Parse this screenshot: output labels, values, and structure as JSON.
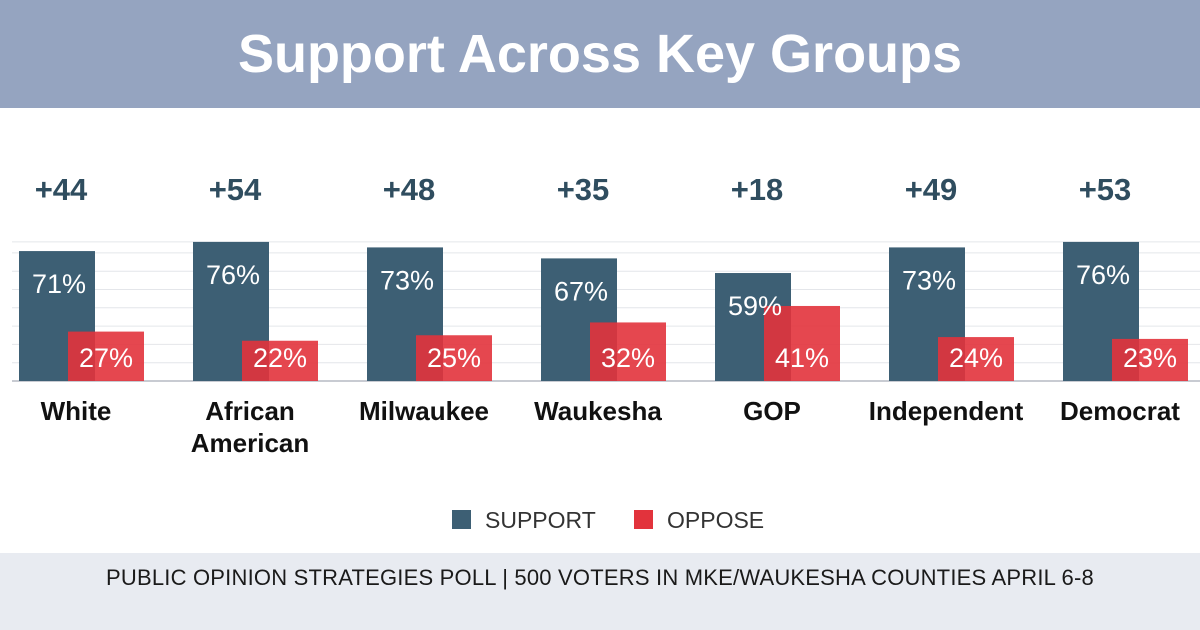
{
  "header": {
    "title": "Support Across Key Groups"
  },
  "footer": {
    "text": "PUBLIC OPINION STRATEGIES POLL  |  500 VOTERS IN MKE/WAUKESHA COUNTIES APRIL 6-8"
  },
  "colors": {
    "support": "#3d5f74",
    "oppose": "#e2333c",
    "header_bg": "#95a4c0",
    "footer_bg": "#e8ebf1",
    "diff_text": "#2f4d5f"
  },
  "chart_data": {
    "type": "bar",
    "title": "Support Across Key Groups",
    "categories": [
      [
        "White"
      ],
      [
        "African",
        "American"
      ],
      [
        "Milwaukee"
      ],
      [
        "Waukesha"
      ],
      [
        "GOP"
      ],
      [
        "Independent"
      ],
      [
        "Democrat"
      ]
    ],
    "series": [
      {
        "name": "SUPPORT",
        "values": [
          71,
          76,
          73,
          67,
          59,
          73,
          76
        ],
        "labels": [
          "71%",
          "76%",
          "73%",
          "67%",
          "59%",
          "73%",
          "76%"
        ]
      },
      {
        "name": "OPPOSE",
        "values": [
          27,
          22,
          25,
          32,
          41,
          24,
          23
        ],
        "labels": [
          "27%",
          "22%",
          "25%",
          "32%",
          "41%",
          "24%",
          "23%"
        ]
      }
    ],
    "differences": [
      "+44",
      "+54",
      "+48",
      "+35",
      "+18",
      "+49",
      "+53"
    ],
    "ylim": [
      0,
      76
    ],
    "grid": true,
    "legend": "bottom-center"
  }
}
